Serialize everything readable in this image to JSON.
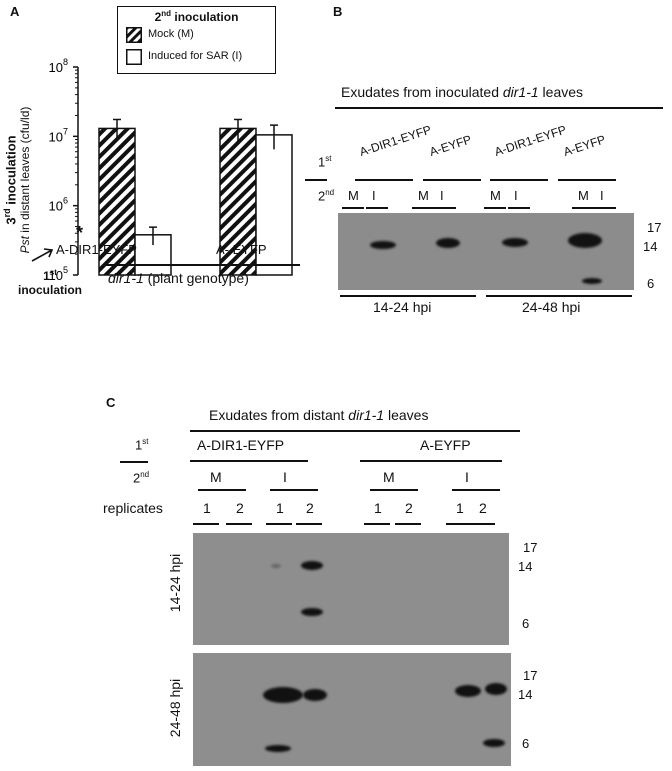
{
  "panelA": {
    "letter": "A",
    "legend": {
      "title_pre": "2",
      "title_sup": "nd",
      "title_post": " inoculation",
      "mock": "Mock (M)",
      "induced": "Induced for SAR (I)"
    },
    "ylabel_line1_pre": "3",
    "ylabel_line1_sup": "rd",
    "ylabel_line1_post": " inoculation",
    "ylabel_line2_em": "Pst",
    "ylabel_line2_post": "  in distant leaves (cfu/ld)",
    "first_inoc_pre": "1",
    "first_inoc_sup": "st",
    "first_inoc_post": "inoculation",
    "genotype_em": "dir1-1",
    "genotype_post": " (plant genotype)",
    "significance": "*",
    "colors": {
      "mock_fill": "hatched-black",
      "induced_fill": "#ffffff"
    }
  },
  "chart_data": {
    "type": "bar",
    "yscale": "log",
    "ylim": [
      100000,
      100000000
    ],
    "ytick_base": "10",
    "yticks_exp": [
      "5",
      "6",
      "7",
      "8"
    ],
    "categories": [
      "A-DIR1-EYFP",
      "A- EYFP"
    ],
    "series": [
      {
        "name": "Mock (M)",
        "values": [
          13000000,
          13000000
        ],
        "err": [
          4500000,
          4500000
        ]
      },
      {
        "name": "Induced for SAR (I)",
        "values": [
          380000,
          10500000
        ],
        "err": [
          110000,
          4000000
        ]
      }
    ],
    "legend_position": "top"
  },
  "panelB": {
    "letter": "B",
    "title_pre": "Exudates from inoculated ",
    "title_em": "dir1-1",
    "title_post": " leaves",
    "row1_pre": "1",
    "row1_sup": "st",
    "row2_pre": "2",
    "row2_sup": "nd",
    "groups": [
      "A-DIR1-EYFP",
      "A-EYFP",
      "A-DIR1-EYFP",
      "A-EYFP"
    ],
    "lanes": [
      "M",
      "I",
      "M",
      "I",
      "M",
      "I",
      "M",
      "I"
    ],
    "mw": [
      "17",
      "14",
      "6"
    ],
    "timepoints": [
      "14-24 hpi",
      "24-48 hpi"
    ]
  },
  "panelC": {
    "letter": "C",
    "title_pre": "Exudates from distant ",
    "title_em": "dir1-1",
    "title_post": " leaves",
    "row1_pre": "1",
    "row1_sup": "st",
    "row2_pre": "2",
    "row2_sup": "nd",
    "groups": [
      "A-DIR1-EYFP",
      "A-EYFP"
    ],
    "treatments": [
      "M",
      "I",
      "M",
      "I"
    ],
    "replicates_label": "replicates",
    "replicates": [
      "1",
      "2",
      "1",
      "2",
      "1",
      "2",
      "1",
      "2"
    ],
    "blot1_label": "14-24 hpi",
    "blot2_label": "24-48 hpi",
    "mw1": [
      "17",
      "14",
      "6"
    ],
    "mw2": [
      "17",
      "14",
      "6"
    ]
  }
}
